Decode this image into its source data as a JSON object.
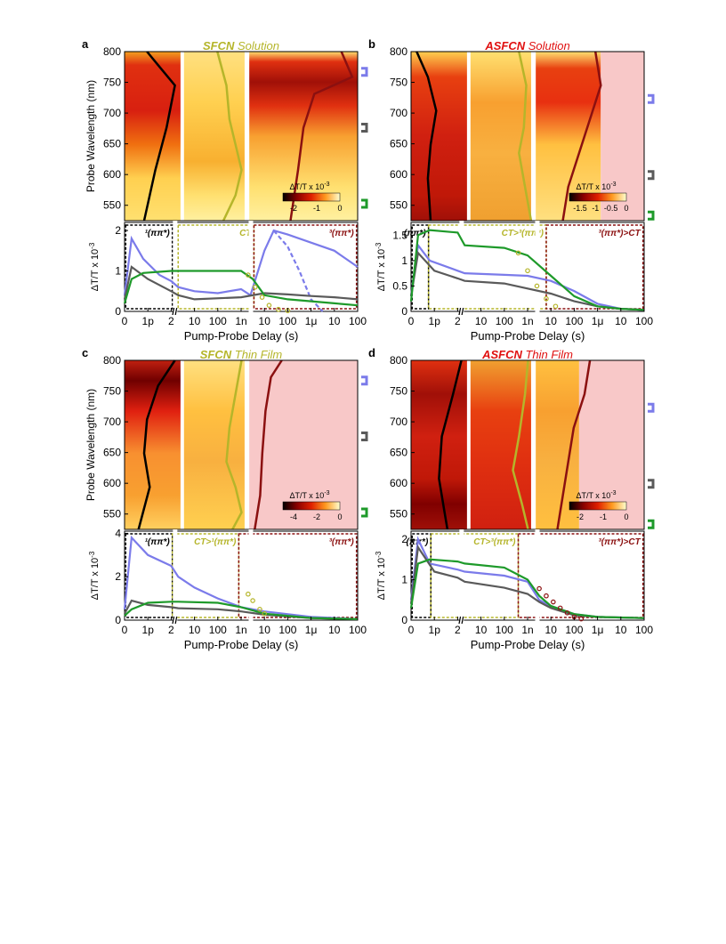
{
  "colors": {
    "blue": "#7b7bea",
    "gray": "#5a5a5a",
    "green": "#1e9a2a",
    "olive": "#b5b52a",
    "darkred": "#8b1010",
    "black": "#000000",
    "pink": "#f8c8c8",
    "red": "#e01010"
  },
  "chart_data": [
    {
      "panel": "a",
      "type": "heatmap",
      "title_bold": "SFCN",
      "title_rest": " Solution",
      "title_color": "#b5b52a",
      "ylabel": "Probe Wavelength (nm)",
      "yticks": [
        "800",
        "750",
        "700",
        "650",
        "600",
        "550"
      ],
      "ylim": [
        525,
        800
      ],
      "colorbar_label": "ΔT/T x 10",
      "colorbar_ticks": [
        "-2",
        "-1",
        "0"
      ],
      "markers": [
        "blue",
        "gray",
        "green"
      ],
      "kinetics": {
        "type": "line",
        "ylabel": "ΔT/T x 10",
        "yticks": [
          "0",
          "1",
          "2"
        ],
        "ylim": [
          0,
          2.2
        ],
        "xticks": [
          "0",
          "1p",
          "2",
          "10",
          "100",
          "1n",
          "10",
          "100",
          "1μ",
          "10",
          "100"
        ],
        "xlabel": "Pump-Probe Delay (s)",
        "regions": [
          "¹(ππ*)",
          "CT",
          "³(ππ*)"
        ],
        "series": [
          {
            "color": "blue",
            "values": [
              [
                0,
                0.4
              ],
              [
                0.3,
                1.8
              ],
              [
                0.8,
                1.3
              ],
              [
                1.5,
                0.9
              ],
              [
                2,
                0.75
              ],
              [
                2.3,
                0.6
              ],
              [
                3,
                0.5
              ],
              [
                4,
                0.45
              ],
              [
                5,
                0.55
              ],
              [
                5.4,
                0.4
              ],
              [
                6,
                1.5
              ],
              [
                6.4,
                2.0
              ],
              [
                7,
                1.9
              ],
              [
                8,
                1.7
              ],
              [
                9,
                1.5
              ],
              [
                10,
                1.1
              ]
            ]
          },
          {
            "color": "blue",
            "dashed": true,
            "values": [
              [
                6.4,
                2.0
              ],
              [
                7,
                1.6
              ],
              [
                7.5,
                1.0
              ],
              [
                8,
                0.3
              ],
              [
                8.5,
                0.0
              ]
            ]
          },
          {
            "color": "gray",
            "values": [
              [
                0,
                0.3
              ],
              [
                0.3,
                1.1
              ],
              [
                1,
                0.8
              ],
              [
                2,
                0.5
              ],
              [
                2.3,
                0.4
              ],
              [
                3,
                0.3
              ],
              [
                5,
                0.35
              ],
              [
                6,
                0.45
              ],
              [
                7,
                0.42
              ],
              [
                8,
                0.38
              ],
              [
                9,
                0.35
              ],
              [
                10,
                0.3
              ]
            ]
          },
          {
            "color": "green",
            "values": [
              [
                0,
                0.2
              ],
              [
                0.3,
                0.8
              ],
              [
                0.8,
                0.95
              ],
              [
                2,
                1.0
              ],
              [
                2.3,
                1.0
              ],
              [
                3,
                1.0
              ],
              [
                4,
                1.0
              ],
              [
                5,
                1.0
              ],
              [
                5.5,
                0.8
              ],
              [
                6,
                0.4
              ],
              [
                7,
                0.3
              ],
              [
                8,
                0.25
              ],
              [
                9,
                0.2
              ],
              [
                10,
                0.15
              ]
            ]
          },
          {
            "color": "olive",
            "markers": true,
            "values": [
              [
                5.3,
                0.9
              ],
              [
                5.6,
                0.6
              ],
              [
                5.9,
                0.35
              ],
              [
                6.2,
                0.15
              ],
              [
                6.6,
                0.05
              ],
              [
                7,
                0.02
              ]
            ]
          }
        ]
      }
    },
    {
      "panel": "b",
      "type": "heatmap",
      "title_bold": "ASFCN",
      "title_rest": " Solution",
      "title_color": "#e01010",
      "ylabel": "",
      "yticks": [
        "800",
        "750",
        "700",
        "650",
        "600",
        "550"
      ],
      "ylim": [
        525,
        800
      ],
      "colorbar_label": "ΔT/T x 10",
      "colorbar_ticks": [
        "-1.5",
        "-1",
        "-0.5",
        "0"
      ],
      "markers": [
        "blue",
        "gray",
        "green"
      ],
      "kinetics": {
        "type": "line",
        "ylabel": "ΔT/T x 10",
        "yticks": [
          "0",
          "0.5",
          "1",
          "1.5"
        ],
        "ylim": [
          0,
          1.75
        ],
        "xticks": [
          "0",
          "1p",
          "2",
          "10",
          "100",
          "1n",
          "10",
          "100",
          "1μ",
          "10",
          "100"
        ],
        "xlabel": "Pump-Probe Delay (s)",
        "regions": [
          "(ππ*)",
          "CT>³(ππ*)",
          "³(ππ*)>CT"
        ],
        "series": [
          {
            "color": "blue",
            "values": [
              [
                0,
                0.3
              ],
              [
                0.3,
                1.3
              ],
              [
                0.8,
                1.0
              ],
              [
                2,
                0.8
              ],
              [
                2.3,
                0.75
              ],
              [
                4,
                0.72
              ],
              [
                5,
                0.7
              ],
              [
                6,
                0.6
              ],
              [
                7,
                0.4
              ],
              [
                8,
                0.15
              ],
              [
                9,
                0.05
              ],
              [
                10,
                0.03
              ]
            ]
          },
          {
            "color": "gray",
            "values": [
              [
                0,
                0.3
              ],
              [
                0.3,
                1.15
              ],
              [
                1,
                0.8
              ],
              [
                2,
                0.65
              ],
              [
                2.3,
                0.6
              ],
              [
                4,
                0.55
              ],
              [
                5,
                0.45
              ],
              [
                6,
                0.35
              ],
              [
                7,
                0.2
              ],
              [
                8,
                0.1
              ],
              [
                9,
                0.05
              ],
              [
                10,
                0.03
              ]
            ]
          },
          {
            "color": "green",
            "values": [
              [
                0,
                0.2
              ],
              [
                0.3,
                1.5
              ],
              [
                0.8,
                1.6
              ],
              [
                2,
                1.55
              ],
              [
                2.3,
                1.3
              ],
              [
                4,
                1.25
              ],
              [
                5,
                1.1
              ],
              [
                6,
                0.7
              ],
              [
                7,
                0.3
              ],
              [
                8,
                0.1
              ],
              [
                9,
                0.05
              ],
              [
                10,
                0.03
              ]
            ]
          },
          {
            "color": "olive",
            "markers": true,
            "values": [
              [
                4.6,
                1.15
              ],
              [
                5.0,
                0.8
              ],
              [
                5.4,
                0.5
              ],
              [
                5.8,
                0.25
              ],
              [
                6.2,
                0.1
              ]
            ]
          }
        ]
      }
    },
    {
      "panel": "c",
      "type": "heatmap",
      "title_bold": "SFCN",
      "title_rest": " Thin Film",
      "title_color": "#b5b52a",
      "ylabel": "Probe Wavelength (nm)",
      "yticks": [
        "800",
        "750",
        "700",
        "650",
        "600",
        "550"
      ],
      "ylim": [
        525,
        800
      ],
      "colorbar_label": "ΔT/T x 10",
      "colorbar_ticks": [
        "-4",
        "-2",
        "0"
      ],
      "markers": [
        "blue",
        "gray",
        "green"
      ],
      "kinetics": {
        "type": "line",
        "ylabel": "ΔT/T x 10",
        "yticks": [
          "0",
          "2",
          "4"
        ],
        "ylim": [
          0,
          4.1
        ],
        "xticks": [
          "0",
          "1p",
          "2",
          "10",
          "100",
          "1n",
          "10",
          "100",
          "1μ",
          "10",
          "100"
        ],
        "xlabel": "Pump-Probe Delay (s)",
        "regions": [
          "¹(ππ*)",
          "CT>¹(ππ*)",
          "³(ππ*)"
        ],
        "series": [
          {
            "color": "blue",
            "values": [
              [
                0,
                0.5
              ],
              [
                0.3,
                3.8
              ],
              [
                1,
                3.0
              ],
              [
                2,
                2.5
              ],
              [
                2.3,
                2.0
              ],
              [
                3,
                1.5
              ],
              [
                4,
                1.0
              ],
              [
                5,
                0.6
              ],
              [
                6,
                0.4
              ],
              [
                8,
                0.15
              ],
              [
                10,
                0.05
              ]
            ]
          },
          {
            "color": "gray",
            "values": [
              [
                0,
                0.3
              ],
              [
                0.3,
                0.9
              ],
              [
                1,
                0.7
              ],
              [
                2,
                0.6
              ],
              [
                2.3,
                0.55
              ],
              [
                4,
                0.5
              ],
              [
                5,
                0.4
              ],
              [
                6,
                0.25
              ],
              [
                8,
                0.1
              ],
              [
                10,
                0.05
              ]
            ]
          },
          {
            "color": "green",
            "values": [
              [
                0,
                0.2
              ],
              [
                0.3,
                0.5
              ],
              [
                1,
                0.8
              ],
              [
                2,
                0.85
              ],
              [
                2.3,
                0.85
              ],
              [
                4,
                0.8
              ],
              [
                5,
                0.6
              ],
              [
                6,
                0.3
              ],
              [
                8,
                0.1
              ],
              [
                10,
                0.05
              ]
            ]
          },
          {
            "color": "olive",
            "markers": true,
            "values": [
              [
                5.3,
                1.2
              ],
              [
                5.5,
                0.9
              ],
              [
                5.8,
                0.5
              ],
              [
                6.0,
                0.3
              ]
            ]
          }
        ]
      }
    },
    {
      "panel": "d",
      "type": "heatmap",
      "title_bold": "ASFCN",
      "title_rest": " Thin Film",
      "title_color": "#e01010",
      "ylabel": "",
      "yticks": [
        "800",
        "750",
        "700",
        "650",
        "600",
        "550"
      ],
      "ylim": [
        525,
        800
      ],
      "colorbar_label": "ΔT/T x 10",
      "colorbar_ticks": [
        "-2",
        "-1",
        "0"
      ],
      "markers": [
        "blue",
        "gray",
        "green"
      ],
      "kinetics": {
        "type": "line",
        "ylabel": "ΔT/T x 10",
        "yticks": [
          "0",
          "1",
          "2"
        ],
        "ylim": [
          0,
          2.2
        ],
        "xticks": [
          "0",
          "1p",
          "2",
          "10",
          "100",
          "1n",
          "10",
          "100",
          "1μ",
          "10",
          "100"
        ],
        "xlabel": "Pump-Probe Delay (s)",
        "regions": [
          "(ππ*)",
          "CT>³(ππ*)",
          "³(ππ*)>CT"
        ],
        "series": [
          {
            "color": "blue",
            "values": [
              [
                0,
                0.5
              ],
              [
                0.3,
                2.0
              ],
              [
                0.8,
                1.4
              ],
              [
                2,
                1.25
              ],
              [
                2.3,
                1.2
              ],
              [
                4,
                1.1
              ],
              [
                5,
                0.95
              ],
              [
                5.5,
                0.5
              ],
              [
                6,
                0.35
              ],
              [
                7,
                0.15
              ],
              [
                8,
                0.08
              ],
              [
                10,
                0.05
              ]
            ]
          },
          {
            "color": "gray",
            "values": [
              [
                0,
                0.4
              ],
              [
                0.3,
                1.8
              ],
              [
                1,
                1.2
              ],
              [
                2,
                1.05
              ],
              [
                2.3,
                0.95
              ],
              [
                4,
                0.8
              ],
              [
                5,
                0.65
              ],
              [
                5.5,
                0.45
              ],
              [
                6,
                0.3
              ],
              [
                7,
                0.12
              ],
              [
                8,
                0.08
              ],
              [
                10,
                0.05
              ]
            ]
          },
          {
            "color": "green",
            "values": [
              [
                0,
                0.3
              ],
              [
                0.3,
                1.4
              ],
              [
                0.8,
                1.5
              ],
              [
                2,
                1.45
              ],
              [
                2.3,
                1.4
              ],
              [
                4,
                1.3
              ],
              [
                5,
                1.0
              ],
              [
                5.5,
                0.6
              ],
              [
                6,
                0.35
              ],
              [
                7,
                0.15
              ],
              [
                8,
                0.08
              ],
              [
                10,
                0.05
              ]
            ]
          },
          {
            "color": "darkred",
            "markers": true,
            "values": [
              [
                5.5,
                0.78
              ],
              [
                5.8,
                0.6
              ],
              [
                6.1,
                0.45
              ],
              [
                6.4,
                0.3
              ],
              [
                6.7,
                0.18
              ],
              [
                7.0,
                0.08
              ],
              [
                7.3,
                0.03
              ]
            ]
          }
        ]
      }
    }
  ]
}
